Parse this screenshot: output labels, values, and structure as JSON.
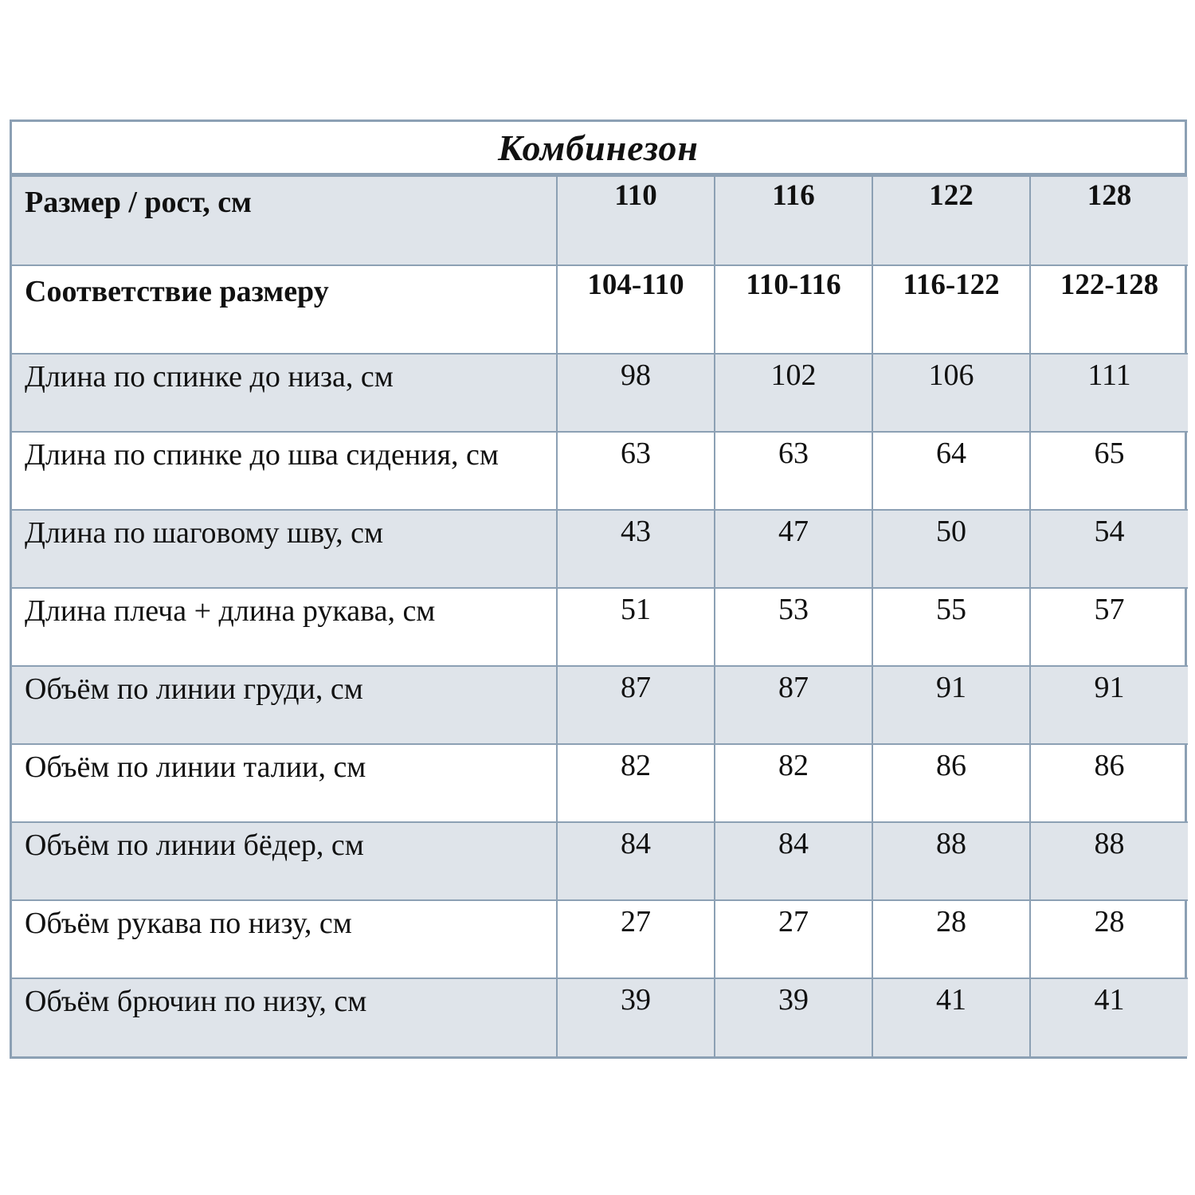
{
  "title": "Комбинезон",
  "header_rows": [
    {
      "label": "Размер / рост, см",
      "values": [
        "110",
        "116",
        "122",
        "128"
      ]
    },
    {
      "label": "Соответствие  размеру",
      "values": [
        "104-110",
        "110-116",
        "116-122",
        "122-128"
      ]
    }
  ],
  "rows": [
    {
      "label": "Длина по спинке до низа, см",
      "values": [
        "98",
        "102",
        "106",
        "111"
      ]
    },
    {
      "label": "Длина по спинке до шва сидения, см",
      "values": [
        "63",
        "63",
        "64",
        "65"
      ]
    },
    {
      "label": "Длина по шаговому шву, см",
      "values": [
        "43",
        "47",
        "50",
        "54"
      ]
    },
    {
      "label": "Длина плеча + длина рукава, см",
      "values": [
        "51",
        "53",
        "55",
        "57"
      ]
    },
    {
      "label": "Объём по линии груди, см",
      "values": [
        "87",
        "87",
        "91",
        "91"
      ]
    },
    {
      "label": "Объём по линии талии, см",
      "values": [
        "82",
        "82",
        "86",
        "86"
      ]
    },
    {
      "label": "Объём по линии бёдер, см",
      "values": [
        "84",
        "84",
        "88",
        "88"
      ]
    },
    {
      "label": "Объём рукава по низу, см",
      "values": [
        "27",
        "27",
        "28",
        "28"
      ]
    },
    {
      "label": "Объём брючин по низу, см",
      "values": [
        "39",
        "39",
        "41",
        "41"
      ]
    }
  ],
  "colors": {
    "border": "#8ca0b4",
    "shaded_row": "#dfe4ea",
    "background": "#ffffff"
  }
}
